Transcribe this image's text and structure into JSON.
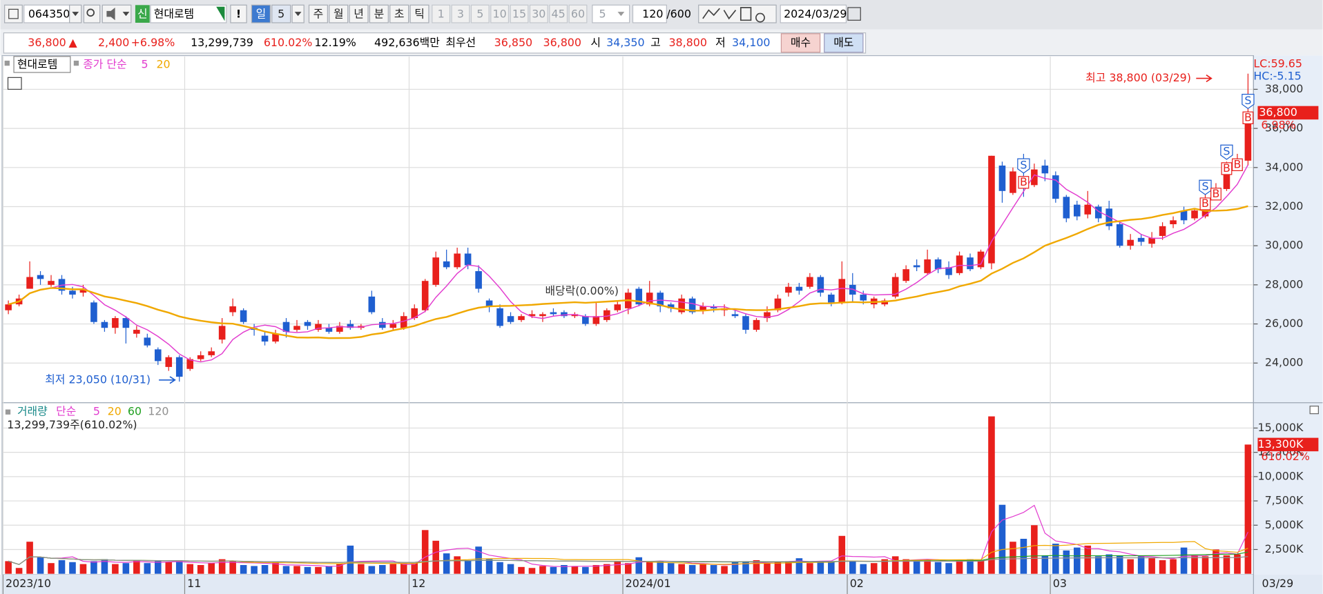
{
  "toolbar": {
    "code": "064350",
    "market_badge": "신",
    "name": "현대로템",
    "alert": "!",
    "periods": [
      "일",
      "5",
      "주",
      "월",
      "년",
      "분",
      "초",
      "틱"
    ],
    "minutes": [
      "1",
      "3",
      "5",
      "10",
      "15",
      "30",
      "45",
      "60"
    ],
    "minute_select": "5",
    "count": "120",
    "count_max": "/600",
    "date": "2024/03/29"
  },
  "quote": {
    "price": "36,800",
    "arrow": "▲",
    "change": "2,400",
    "change_pct": "+6.98%",
    "volume": "13,299,739",
    "volume_ratio": "610.02%",
    "turnover": "12.19%",
    "amount": "492,636백만",
    "best_label": "최우선",
    "best_ask": "36,850",
    "best_bid": "36,800",
    "open_label": "시",
    "open": "34,350",
    "high_label": "고",
    "high": "38,800",
    "low_label": "저",
    "low": "34,100",
    "buy": "매수",
    "sell": "매도"
  },
  "chart_data": [
    {
      "type": "candlestick",
      "name": "현대로템",
      "ma_label": "종가 단순",
      "ma_periods": [
        5,
        20
      ],
      "ma_colors": [
        "#e23ccf",
        "#f0a800"
      ],
      "up_color": "#e8201c",
      "down_color": "#1f5fd0",
      "categories": [
        "2023/10",
        null,
        null,
        null,
        null,
        null,
        null,
        null,
        null,
        null,
        null,
        null,
        null,
        null,
        null,
        null,
        null,
        "11",
        null,
        null,
        null,
        null,
        null,
        null,
        null,
        null,
        null,
        null,
        null,
        null,
        null,
        null,
        null,
        null,
        null,
        null,
        null,
        null,
        "12",
        null,
        null,
        null,
        null,
        null,
        null,
        null,
        null,
        null,
        null,
        null,
        null,
        null,
        null,
        null,
        null,
        null,
        null,
        null,
        "2024/01",
        null,
        null,
        null,
        null,
        null,
        null,
        null,
        null,
        null,
        null,
        null,
        null,
        null,
        null,
        null,
        null,
        null,
        null,
        null,
        null,
        "02",
        null,
        null,
        null,
        null,
        null,
        null,
        null,
        null,
        null,
        null,
        null,
        null,
        null,
        null,
        null,
        null,
        null,
        null,
        "03",
        null,
        null,
        null,
        null,
        null,
        null,
        null,
        null,
        null,
        null,
        null,
        null,
        null,
        null,
        null,
        null,
        null,
        null
      ],
      "x_end_label": "03/29",
      "open": [
        26700,
        27000,
        27800,
        28500,
        28000,
        28300,
        27700,
        27600,
        27100,
        26100,
        25800,
        26300,
        25500,
        25300,
        24700,
        23800,
        24300,
        23700,
        24200,
        24400,
        25200,
        26600,
        26700,
        25800,
        25400,
        25100,
        26100,
        25700,
        26100,
        25700,
        25800,
        25600,
        26000,
        25800,
        27400,
        26100,
        25800,
        25800,
        26300,
        26700,
        28000,
        29200,
        28900,
        29600,
        28700,
        27200,
        26800,
        26400,
        26200,
        26400,
        26400,
        26600,
        26600,
        26400,
        26400,
        26000,
        26200,
        26700,
        26800,
        27800,
        27000,
        27600,
        27000,
        26600,
        27300,
        26700,
        26900,
        26700,
        26500,
        26400,
        25700,
        26300,
        26700,
        27600,
        27900,
        27900,
        28400,
        27500,
        27100,
        28000,
        27500,
        27000,
        27000,
        27400,
        28200,
        29000,
        28600,
        29300,
        28900,
        28600,
        29400,
        28900,
        29100,
        34100,
        32700,
        33500,
        33100,
        34100,
        33600,
        32500,
        32100,
        31600,
        32000,
        31900,
        31100,
        30000,
        30400,
        30100,
        30500,
        31100,
        31800,
        31400,
        31500,
        32600,
        32900,
        34300,
        34350
      ],
      "high": [
        27200,
        27500,
        29200,
        28700,
        28500,
        28500,
        27900,
        28000,
        27200,
        26200,
        26400,
        26400,
        25900,
        25500,
        24800,
        24400,
        24400,
        24300,
        24600,
        24800,
        26300,
        27300,
        26800,
        26000,
        25600,
        25700,
        26300,
        26200,
        26200,
        26200,
        26000,
        26100,
        26200,
        26000,
        27700,
        26300,
        26200,
        26600,
        27000,
        28300,
        29700,
        29800,
        29900,
        29900,
        29000,
        27300,
        27000,
        26600,
        26500,
        26700,
        26600,
        26800,
        26700,
        26600,
        26500,
        27100,
        26800,
        27200,
        27800,
        27900,
        28200,
        27700,
        27100,
        27500,
        27400,
        27100,
        27000,
        27000,
        26700,
        26500,
        26300,
        26900,
        27500,
        28100,
        28100,
        28600,
        28500,
        27600,
        29200,
        28600,
        27700,
        27400,
        27300,
        28600,
        29000,
        29300,
        29800,
        29400,
        29200,
        29700,
        29600,
        29800,
        34600,
        34300,
        34000,
        34700,
        34200,
        34400,
        33800,
        32600,
        32300,
        32800,
        32100,
        32300,
        31200,
        30600,
        30600,
        30700,
        31200,
        31500,
        32000,
        31900,
        33200,
        33200,
        34300,
        34700,
        38800
      ],
      "low": [
        26500,
        26900,
        27800,
        28000,
        27900,
        27500,
        27300,
        27400,
        26000,
        25600,
        25500,
        25000,
        25300,
        24800,
        23900,
        23600,
        23050,
        23600,
        24100,
        24300,
        25000,
        26400,
        26000,
        25400,
        24900,
        25000,
        25300,
        25600,
        25700,
        25600,
        25500,
        25500,
        25700,
        25700,
        26500,
        25700,
        25700,
        25700,
        26200,
        26600,
        27900,
        28800,
        28800,
        28800,
        27600,
        26600,
        25800,
        26000,
        26100,
        26300,
        26100,
        26400,
        26300,
        26300,
        25900,
        25900,
        26100,
        26600,
        26500,
        26900,
        26900,
        26600,
        26600,
        26500,
        26500,
        26500,
        26600,
        26400,
        26300,
        25500,
        25600,
        26100,
        26600,
        27400,
        27500,
        27800,
        27400,
        26900,
        27000,
        27100,
        27000,
        26800,
        26900,
        27300,
        28100,
        28700,
        28500,
        28600,
        28300,
        28500,
        28700,
        28800,
        28800,
        32200,
        32600,
        32500,
        33000,
        33300,
        32200,
        31200,
        31300,
        31400,
        31200,
        30800,
        29900,
        29800,
        30000,
        29900,
        30300,
        30900,
        31100,
        31300,
        31400,
        32400,
        32800,
        34100,
        34100
      ],
      "close": [
        27000,
        27300,
        28400,
        28300,
        28200,
        27700,
        27500,
        27800,
        26100,
        25800,
        26300,
        25800,
        25700,
        24900,
        24100,
        24300,
        23300,
        24200,
        24400,
        24600,
        25900,
        26900,
        26100,
        25700,
        25100,
        25500,
        25600,
        25900,
        25900,
        26000,
        25600,
        25900,
        25800,
        25900,
        26600,
        25800,
        26000,
        26400,
        26800,
        28200,
        29400,
        28900,
        29600,
        29000,
        27800,
        26900,
        25900,
        26100,
        26400,
        26500,
        26500,
        26500,
        26400,
        26500,
        26000,
        26400,
        26700,
        27000,
        27600,
        27000,
        27600,
        26900,
        26800,
        27300,
        26600,
        26900,
        26800,
        26800,
        26400,
        25700,
        26200,
        26600,
        27300,
        27900,
        27700,
        28400,
        27600,
        27100,
        28300,
        27500,
        27200,
        27300,
        27200,
        28400,
        28800,
        28900,
        29300,
        28800,
        28500,
        29500,
        28800,
        29700,
        34600,
        32800,
        33800,
        33000,
        33900,
        33700,
        32400,
        31400,
        31500,
        32100,
        31400,
        31000,
        30000,
        30300,
        30200,
        30400,
        31000,
        31300,
        31300,
        31800,
        32400,
        32900,
        34200,
        34400,
        36800
      ],
      "ylim": [
        21970,
        39680
      ],
      "yticks": [
        {
          "value": 24000,
          "label": "24,000"
        },
        {
          "value": 26000,
          "label": "26,000"
        },
        {
          "value": 28000,
          "label": "28,000"
        },
        {
          "value": 30000,
          "label": "30,000"
        },
        {
          "value": 32000,
          "label": "32,000"
        },
        {
          "value": 34000,
          "label": "34,000"
        },
        {
          "value": 36000,
          "label": "36,000"
        },
        {
          "value": 38000,
          "label": "38,000"
        }
      ],
      "grid": true,
      "lc_label": "LC:59.65",
      "hc_label": "HC:-5.15",
      "current_label": "36,800",
      "current_change_label": "6.98%",
      "annotations": {
        "max": "최고 38,800 (03/29)",
        "min": "최저 23,050 (10/31)",
        "dividend": "배당락(0.00%)"
      },
      "signals": [
        {
          "index": 95,
          "text": "S"
        },
        {
          "index": 95,
          "text": "B"
        },
        {
          "index": 112,
          "text": "S"
        },
        {
          "index": 112,
          "text": "B"
        },
        {
          "index": 113,
          "text": "B"
        },
        {
          "index": 114,
          "text": "S"
        },
        {
          "index": 114,
          "text": "B"
        },
        {
          "index": 115,
          "text": "B"
        },
        {
          "index": 116,
          "text": "S"
        },
        {
          "index": 116,
          "text": "B"
        }
      ]
    },
    {
      "type": "bar",
      "name": "거래량",
      "ma_label": "단순",
      "ma_periods": [
        5,
        20,
        60,
        120
      ],
      "ma_colors": [
        "#e23ccf",
        "#f0a800",
        "#20a020",
        "#909090"
      ],
      "values": [
        1300000,
        600000,
        3300000,
        1700000,
        1100000,
        1400000,
        1200000,
        1000000,
        1300000,
        1500000,
        1000000,
        1100000,
        1400000,
        1100000,
        1300000,
        1200000,
        1300000,
        1000000,
        900000,
        1100000,
        1500000,
        1300000,
        900000,
        800000,
        900000,
        1200000,
        800000,
        800000,
        700000,
        700000,
        800000,
        1000000,
        2900000,
        1000000,
        800000,
        900000,
        1000000,
        1100000,
        1100000,
        4500000,
        3400000,
        2100000,
        1800000,
        1400000,
        2800000,
        1500000,
        1200000,
        1000000,
        700000,
        600000,
        800000,
        700000,
        900000,
        800000,
        700000,
        900000,
        1000000,
        1300000,
        1100000,
        1700000,
        1200000,
        1300000,
        1100000,
        1000000,
        900000,
        1000000,
        900000,
        800000,
        1200000,
        1300000,
        1400000,
        1100000,
        1200000,
        1300000,
        1600000,
        1100000,
        1300000,
        1300000,
        3900000,
        1300000,
        1000000,
        1100000,
        1500000,
        1800000,
        1500000,
        1300000,
        1400000,
        1200000,
        1100000,
        1400000,
        1500000,
        1400000,
        16200000,
        7100000,
        3300000,
        3600000,
        5000000,
        1900000,
        3100000,
        2400000,
        2700000,
        2900000,
        1800000,
        2000000,
        1900000,
        1500000,
        1800000,
        1600000,
        1400000,
        1500000,
        2700000,
        1900000,
        1800000,
        2500000,
        1900000,
        2000000,
        13299739
      ],
      "value_summary": "13,299,739주(610.02%)",
      "ylim": [
        0,
        17170000
      ],
      "yticks": [
        {
          "value": 2500000,
          "label": "2,500K"
        },
        {
          "value": 5000000,
          "label": "5,000K"
        },
        {
          "value": 7500000,
          "label": "7,500K"
        },
        {
          "value": 10000000,
          "label": "10,000K"
        },
        {
          "value": 12500000,
          "label": "12,500K"
        },
        {
          "value": 15000000,
          "label": "15,000K"
        }
      ],
      "grid": true,
      "current_label": "13,300K",
      "current_change_label": "610.02%"
    }
  ]
}
